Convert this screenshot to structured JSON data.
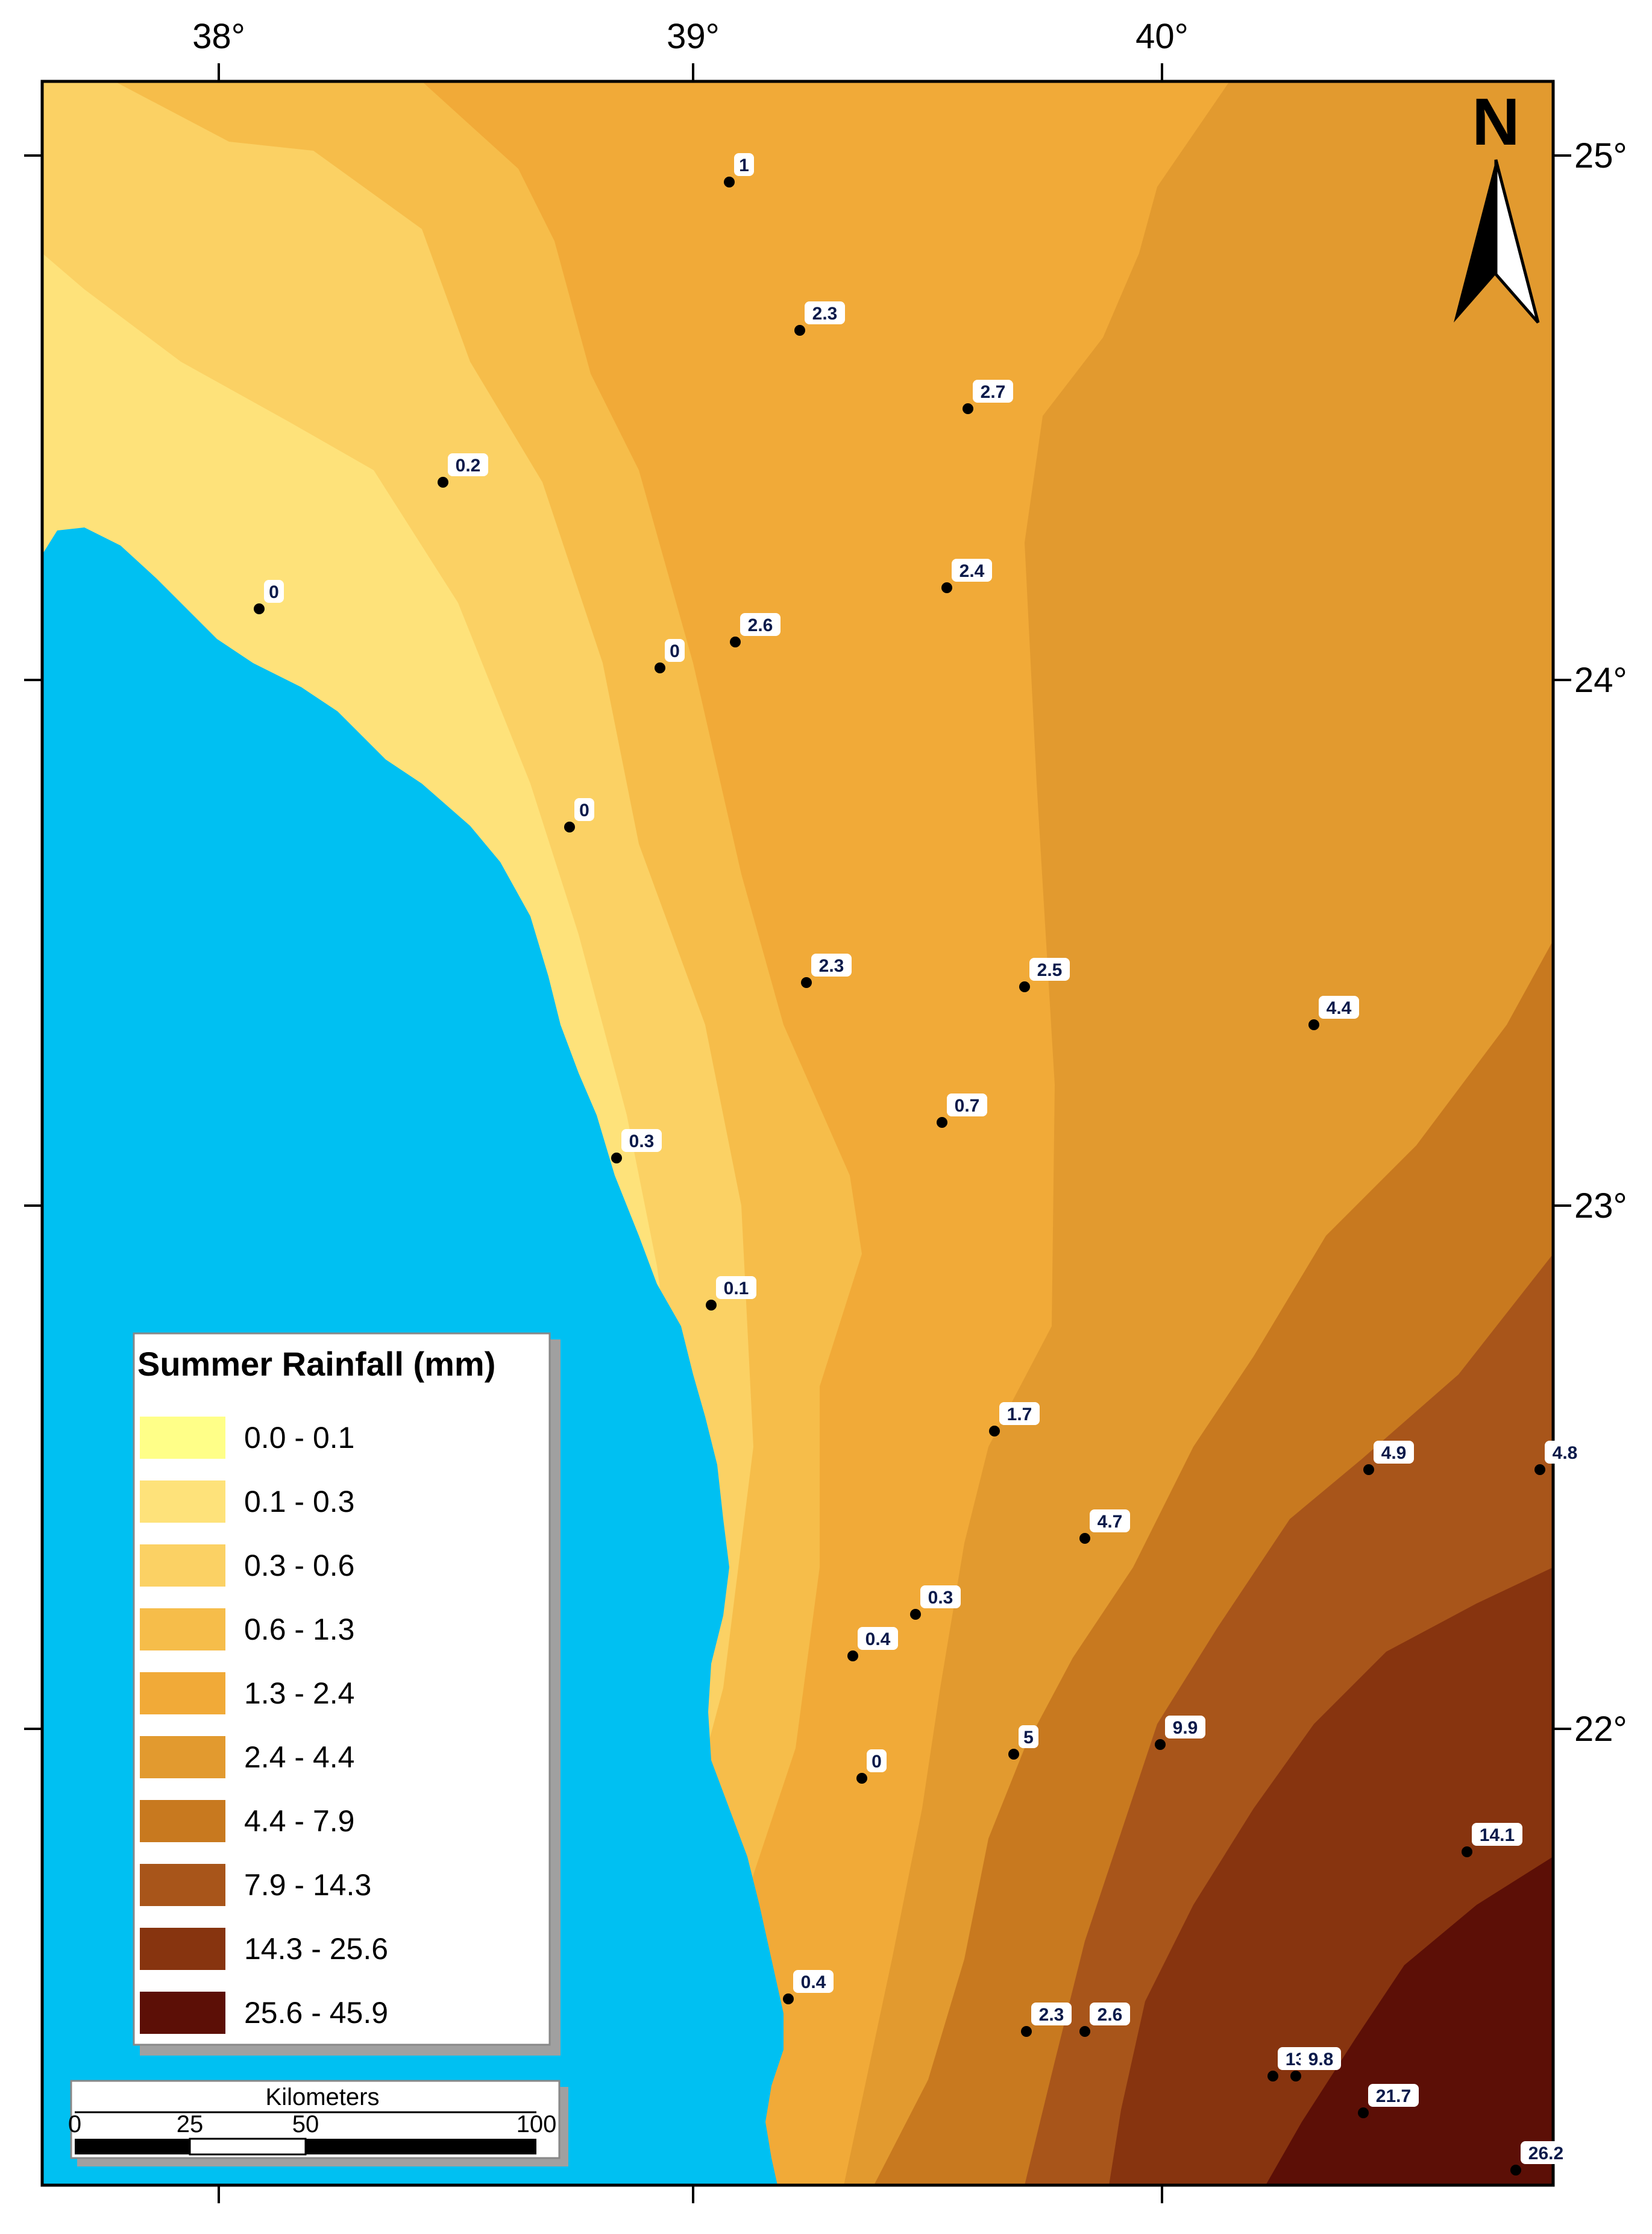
{
  "map": {
    "north_label": "N",
    "longitude_ticks": [
      "38°",
      "39°",
      "40°"
    ],
    "latitude_ticks": [
      "25°",
      "24°",
      "23°",
      "22°"
    ],
    "colors": {
      "sea": "#00c0f2",
      "frame": "#000000",
      "station_dot": "#000000"
    }
  },
  "legend": {
    "title": "Summer Rainfall (mm)",
    "classes": [
      {
        "label": "0.0 - 0.1",
        "color": "#ffff88"
      },
      {
        "label": "0.1 - 0.3",
        "color": "#fee27a"
      },
      {
        "label": "0.3 - 0.6",
        "color": "#fbd164"
      },
      {
        "label": "0.6 - 1.3",
        "color": "#f6bd4a"
      },
      {
        "label": "1.3 - 2.4",
        "color": "#f1aa38"
      },
      {
        "label": "2.4 - 4.4",
        "color": "#e29a2f"
      },
      {
        "label": "4.4 - 7.9",
        "color": "#c8791f"
      },
      {
        "label": "7.9 - 14.3",
        "color": "#a8551a"
      },
      {
        "label": "14.3 - 25.6",
        "color": "#87340f"
      },
      {
        "label": "25.6 - 45.9",
        "color": "#5c0f06"
      }
    ]
  },
  "scale_bar": {
    "title": "Kilometers",
    "ticks": [
      "0",
      "25",
      "50",
      "100"
    ]
  },
  "stations": [
    {
      "value": "1"
    },
    {
      "value": "2.3"
    },
    {
      "value": "2.7"
    },
    {
      "value": "0.2"
    },
    {
      "value": "2.4"
    },
    {
      "value": "0"
    },
    {
      "value": "2.6"
    },
    {
      "value": "0"
    },
    {
      "value": "0"
    },
    {
      "value": "2.3"
    },
    {
      "value": "2.5"
    },
    {
      "value": "4.4"
    },
    {
      "value": "0.7"
    },
    {
      "value": "0.3"
    },
    {
      "value": "0.1"
    },
    {
      "value": "1.7"
    },
    {
      "value": "4.9"
    },
    {
      "value": "4.8"
    },
    {
      "value": "4.7"
    },
    {
      "value": "0.4"
    },
    {
      "value": "0.3"
    },
    {
      "value": "0"
    },
    {
      "value": "5"
    },
    {
      "value": "9.9"
    },
    {
      "value": "14.1"
    },
    {
      "value": "0.4"
    },
    {
      "value": "2.3"
    },
    {
      "value": "2.6"
    },
    {
      "value": "13.4"
    },
    {
      "value": "9.8"
    },
    {
      "value": "21.7"
    },
    {
      "value": "26.2"
    }
  ]
}
